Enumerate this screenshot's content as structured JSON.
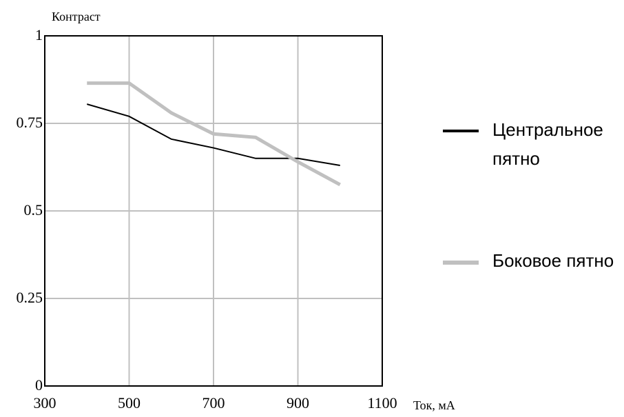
{
  "chart_data": {
    "type": "line",
    "x_label": "Ток, мА",
    "y_label": "Контраст",
    "x": [
      400,
      500,
      600,
      700,
      800,
      900,
      1000
    ],
    "series": [
      {
        "name": "Центральное пятно",
        "color": "#000000",
        "values": [
          0.805,
          0.77,
          0.705,
          0.68,
          0.65,
          0.65,
          0.63
        ]
      },
      {
        "name": "Боковое пятно",
        "color": "#c0c0c0",
        "values": [
          0.865,
          0.865,
          0.78,
          0.72,
          0.71,
          0.64,
          0.575
        ]
      }
    ],
    "xlim": [
      300,
      1100
    ],
    "ylim": [
      0,
      1
    ],
    "xticks": [
      300,
      500,
      700,
      900,
      1100
    ],
    "yticks": [
      0,
      0.25,
      0.5,
      0.75,
      1
    ],
    "grid": true
  }
}
